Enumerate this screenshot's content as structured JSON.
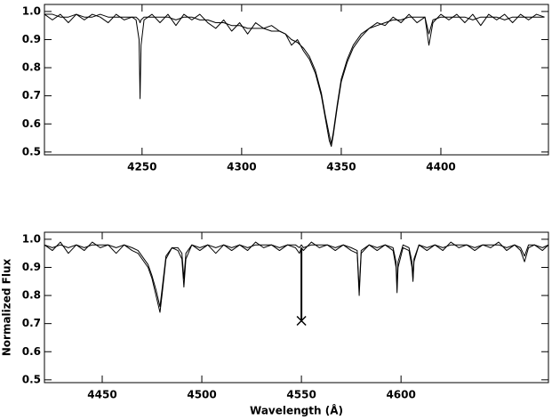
{
  "chart_data": [
    {
      "type": "line",
      "xlim": [
        4201,
        4454
      ],
      "ylim": [
        0.49,
        1.025
      ],
      "xticks": [
        4250,
        4300,
        4350,
        4400
      ],
      "yticks": [
        0.5,
        0.6,
        0.7,
        0.8,
        0.9,
        {
          "value": 1,
          "label": "1.0"
        }
      ],
      "x": [
        4201,
        4205,
        4209,
        4213,
        4217,
        4221,
        4225,
        4229,
        4233,
        4237,
        4241,
        4245,
        4247,
        4248.5,
        4249,
        4249.5,
        4251,
        4255,
        4259,
        4263,
        4267,
        4271,
        4275,
        4279,
        4283,
        4287,
        4291,
        4295,
        4299,
        4303,
        4307,
        4311,
        4315,
        4319,
        4322,
        4325,
        4328,
        4331,
        4334,
        4337,
        4340,
        4342,
        4344,
        4345,
        4346,
        4348,
        4350,
        4353,
        4356,
        4360,
        4364,
        4368,
        4372,
        4376,
        4380,
        4384,
        4388,
        4392,
        4394,
        4396,
        4400,
        4404,
        4408,
        4412,
        4416,
        4420,
        4424,
        4428,
        4432,
        4436,
        4440,
        4444,
        4448,
        4452
      ],
      "series": [
        {
          "color": "#000000",
          "values": [
            0.99,
            0.97,
            0.99,
            0.96,
            0.99,
            0.97,
            0.99,
            0.98,
            0.96,
            0.99,
            0.97,
            0.98,
            0.97,
            0.9,
            0.69,
            0.88,
            0.97,
            0.99,
            0.96,
            0.99,
            0.95,
            0.99,
            0.97,
            0.99,
            0.96,
            0.94,
            0.97,
            0.93,
            0.96,
            0.92,
            0.96,
            0.94,
            0.95,
            0.93,
            0.92,
            0.88,
            0.9,
            0.86,
            0.83,
            0.78,
            0.7,
            0.62,
            0.54,
            0.52,
            0.56,
            0.66,
            0.75,
            0.82,
            0.87,
            0.91,
            0.94,
            0.96,
            0.95,
            0.98,
            0.96,
            0.99,
            0.96,
            0.98,
            0.88,
            0.96,
            0.99,
            0.97,
            0.99,
            0.96,
            0.99,
            0.95,
            0.99,
            0.97,
            0.99,
            0.96,
            0.99,
            0.97,
            0.99,
            0.98
          ]
        },
        {
          "color": "#000000",
          "values": [
            0.99,
            0.99,
            0.98,
            0.98,
            0.99,
            0.98,
            0.98,
            0.99,
            0.98,
            0.98,
            0.98,
            0.98,
            0.98,
            0.97,
            0.96,
            0.97,
            0.98,
            0.98,
            0.98,
            0.98,
            0.97,
            0.98,
            0.98,
            0.97,
            0.97,
            0.96,
            0.96,
            0.95,
            0.95,
            0.94,
            0.94,
            0.94,
            0.93,
            0.93,
            0.92,
            0.9,
            0.89,
            0.87,
            0.84,
            0.79,
            0.71,
            0.63,
            0.56,
            0.53,
            0.57,
            0.67,
            0.76,
            0.83,
            0.88,
            0.92,
            0.94,
            0.95,
            0.96,
            0.97,
            0.97,
            0.98,
            0.98,
            0.98,
            0.92,
            0.97,
            0.98,
            0.98,
            0.98,
            0.98,
            0.97,
            0.98,
            0.98,
            0.98,
            0.97,
            0.98,
            0.98,
            0.98,
            0.98,
            0.98
          ]
        }
      ]
    },
    {
      "type": "line",
      "xlabel": "Wavelength (Å)",
      "ylabel": "Normalized Flux",
      "xlim": [
        4421,
        4674
      ],
      "ylim": [
        0.49,
        1.025
      ],
      "xticks": [
        4450,
        4500,
        4550,
        4600
      ],
      "yticks": [
        0.5,
        0.6,
        0.7,
        0.8,
        0.9,
        {
          "value": 1,
          "label": "1.0"
        }
      ],
      "x": [
        4421,
        4425,
        4429,
        4433,
        4437,
        4441,
        4445,
        4449,
        4453,
        4457,
        4461,
        4465,
        4468,
        4470,
        4473,
        4475,
        4477,
        4479,
        4480,
        4482,
        4485,
        4488,
        4490,
        4491,
        4492,
        4495,
        4499,
        4503,
        4507,
        4511,
        4515,
        4519,
        4523,
        4527,
        4531,
        4535,
        4539,
        4543,
        4547,
        4549,
        4550,
        4551,
        4555,
        4559,
        4563,
        4567,
        4571,
        4575,
        4578,
        4579,
        4580,
        4584,
        4588,
        4592,
        4596,
        4597.5,
        4598,
        4598.5,
        4601,
        4604,
        4605.5,
        4606,
        4606.5,
        4609,
        4613,
        4617,
        4621,
        4625,
        4629,
        4633,
        4637,
        4641,
        4645,
        4649,
        4653,
        4657,
        4660,
        4662,
        4664,
        4667,
        4671,
        4674
      ],
      "series": [
        {
          "color": "#000000",
          "values": [
            0.98,
            0.96,
            0.99,
            0.95,
            0.98,
            0.96,
            0.99,
            0.97,
            0.98,
            0.95,
            0.98,
            0.96,
            0.95,
            0.93,
            0.9,
            0.86,
            0.8,
            0.74,
            0.8,
            0.93,
            0.97,
            0.96,
            0.93,
            0.83,
            0.93,
            0.98,
            0.96,
            0.98,
            0.95,
            0.98,
            0.96,
            0.98,
            0.96,
            0.99,
            0.97,
            0.98,
            0.96,
            0.98,
            0.97,
            0.95,
            0.97,
            0.96,
            0.99,
            0.97,
            0.98,
            0.96,
            0.98,
            0.96,
            0.95,
            0.8,
            0.95,
            0.98,
            0.96,
            0.98,
            0.96,
            0.9,
            0.81,
            0.9,
            0.97,
            0.96,
            0.9,
            0.85,
            0.92,
            0.98,
            0.96,
            0.98,
            0.96,
            0.99,
            0.97,
            0.98,
            0.96,
            0.98,
            0.97,
            0.99,
            0.96,
            0.98,
            0.96,
            0.92,
            0.97,
            0.98,
            0.96,
            0.98
          ]
        },
        {
          "color": "#000000",
          "values": [
            0.98,
            0.97,
            0.98,
            0.97,
            0.98,
            0.97,
            0.98,
            0.98,
            0.98,
            0.97,
            0.98,
            0.97,
            0.96,
            0.94,
            0.91,
            0.87,
            0.82,
            0.76,
            0.82,
            0.94,
            0.97,
            0.97,
            0.95,
            0.86,
            0.95,
            0.98,
            0.97,
            0.98,
            0.97,
            0.98,
            0.97,
            0.98,
            0.97,
            0.98,
            0.98,
            0.98,
            0.97,
            0.98,
            0.98,
            0.97,
            0.98,
            0.97,
            0.98,
            0.98,
            0.98,
            0.97,
            0.98,
            0.97,
            0.96,
            0.82,
            0.96,
            0.98,
            0.97,
            0.98,
            0.97,
            0.92,
            0.83,
            0.92,
            0.98,
            0.97,
            0.92,
            0.86,
            0.93,
            0.98,
            0.97,
            0.98,
            0.97,
            0.98,
            0.98,
            0.98,
            0.97,
            0.98,
            0.98,
            0.98,
            0.97,
            0.98,
            0.97,
            0.94,
            0.98,
            0.98,
            0.97,
            0.98
          ]
        }
      ],
      "marker": {
        "x": 4550,
        "y": 0.71,
        "y_top": 0.97
      }
    }
  ]
}
